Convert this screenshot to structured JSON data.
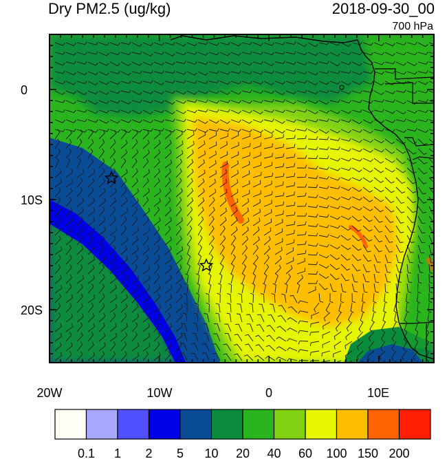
{
  "header": {
    "title": "Dry PM2.5 (ug/kg)",
    "datetime": "2018-09-30_00",
    "level": "700 hPa"
  },
  "axes": {
    "x_ticks": [
      "20W",
      "10W",
      "0",
      "10E"
    ],
    "y_ticks": [
      "0",
      "10S",
      "20S"
    ]
  },
  "colorbar": {
    "labels": [
      "0.1",
      "1",
      "2",
      "5",
      "10",
      "20",
      "40",
      "60",
      "100",
      "150",
      "200"
    ],
    "colors": [
      "#fffff5",
      "#a8a8ff",
      "#5050ff",
      "#0000e6",
      "#0a4b96",
      "#0a8c3c",
      "#2ab41e",
      "#82d214",
      "#e6f500",
      "#ffbe00",
      "#ff6400",
      "#ff1e00"
    ]
  },
  "markers": {
    "symbol": "star",
    "count": 2
  },
  "colors": {
    "coastline": "#000000",
    "frame": "#000000",
    "wind_barb": "#1a1a1a"
  }
}
